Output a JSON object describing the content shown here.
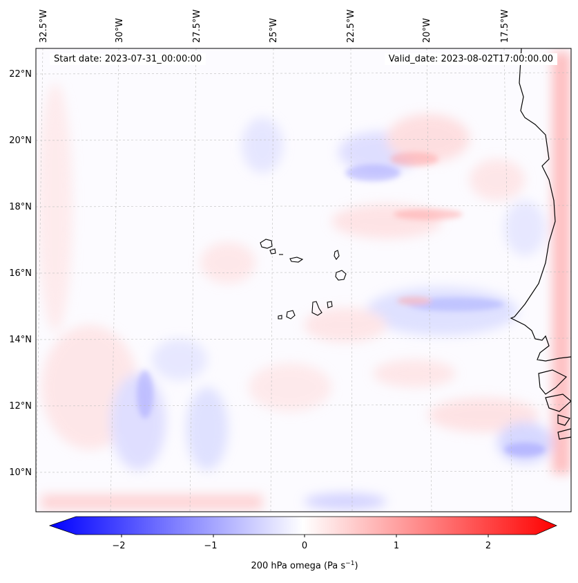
{
  "map": {
    "start_label": "Start date: 2023-07-31_00:00:00",
    "valid_label": "Valid_date: 2023-08-02T17:00:00.00",
    "lon_ticks": [
      "32.5°W",
      "30°W",
      "27.5°W",
      "25°W",
      "22.5°W",
      "20°W",
      "17.5°W"
    ],
    "lat_ticks": [
      "22°N",
      "20°N",
      "18°N",
      "16°N",
      "14°N",
      "12°N",
      "10°N"
    ],
    "field": "200 hPa omega"
  },
  "colorbar": {
    "label": "200 hPa omega (Pa s",
    "label_exp": "−1",
    "label_close": ")",
    "ticks": [
      "−2",
      "−1",
      "0",
      "1",
      "2"
    ],
    "colors": {
      "low": "#0000ff",
      "mid": "#ffffff",
      "high": "#ff0000"
    }
  }
}
